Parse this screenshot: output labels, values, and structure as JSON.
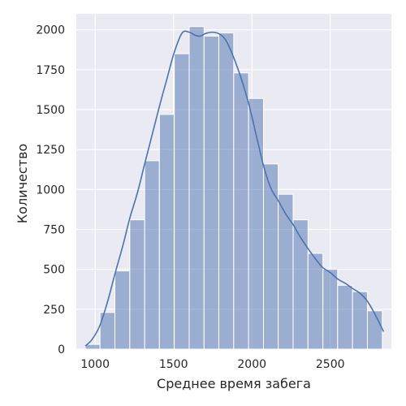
{
  "chart_data": {
    "type": "bar",
    "subtype": "histogram with kde line",
    "xlabel": "Среднее время забега",
    "ylabel": "Количество",
    "xlim": [
      880,
      2890
    ],
    "ylim": [
      0,
      2100
    ],
    "x_ticks": [
      1000,
      1500,
      2000,
      2500
    ],
    "y_ticks": [
      0,
      250,
      500,
      750,
      1000,
      1250,
      1500,
      1750,
      2000
    ],
    "grid": true,
    "background": "#eaeaf2",
    "bar_color": "#4c72b0",
    "line_color": "#4c72b0",
    "bins": [
      {
        "x0": 937,
        "x1": 1031,
        "value": 30
      },
      {
        "x0": 1031,
        "x1": 1126,
        "value": 230
      },
      {
        "x0": 1126,
        "x1": 1221,
        "value": 490
      },
      {
        "x0": 1221,
        "x1": 1316,
        "value": 810
      },
      {
        "x0": 1316,
        "x1": 1410,
        "value": 1180
      },
      {
        "x0": 1410,
        "x1": 1505,
        "value": 1470
      },
      {
        "x0": 1505,
        "x1": 1600,
        "value": 1850
      },
      {
        "x0": 1600,
        "x1": 1695,
        "value": 2020
      },
      {
        "x0": 1695,
        "x1": 1789,
        "value": 1960
      },
      {
        "x0": 1789,
        "x1": 1884,
        "value": 1980
      },
      {
        "x0": 1884,
        "x1": 1979,
        "value": 1730
      },
      {
        "x0": 1979,
        "x1": 2074,
        "value": 1570
      },
      {
        "x0": 2074,
        "x1": 2168,
        "value": 1160
      },
      {
        "x0": 2168,
        "x1": 2263,
        "value": 970
      },
      {
        "x0": 2263,
        "x1": 2358,
        "value": 810
      },
      {
        "x0": 2358,
        "x1": 2453,
        "value": 600
      },
      {
        "x0": 2453,
        "x1": 2547,
        "value": 500
      },
      {
        "x0": 2547,
        "x1": 2642,
        "value": 400
      },
      {
        "x0": 2642,
        "x1": 2737,
        "value": 360
      },
      {
        "x0": 2737,
        "x1": 2832,
        "value": 240
      }
    ],
    "kde": {
      "x": [
        937,
        980,
        1031,
        1080,
        1126,
        1180,
        1221,
        1270,
        1316,
        1363,
        1410,
        1460,
        1505,
        1555,
        1600,
        1640,
        1670,
        1700,
        1745,
        1790,
        1830,
        1870,
        1920,
        1979,
        2030,
        2074,
        2120,
        2168,
        2220,
        2263,
        2310,
        2358,
        2410,
        2453,
        2500,
        2547,
        2600,
        2642,
        2690,
        2737,
        2790,
        2840
      ],
      "y": [
        20,
        60,
        150,
        300,
        470,
        660,
        820,
        980,
        1160,
        1340,
        1520,
        1700,
        1860,
        1980,
        1985,
        1965,
        1960,
        1975,
        1985,
        1975,
        1940,
        1860,
        1730,
        1540,
        1330,
        1150,
        1010,
        930,
        840,
        780,
        700,
        630,
        560,
        510,
        480,
        440,
        410,
        380,
        350,
        300,
        210,
        110
      ]
    }
  }
}
